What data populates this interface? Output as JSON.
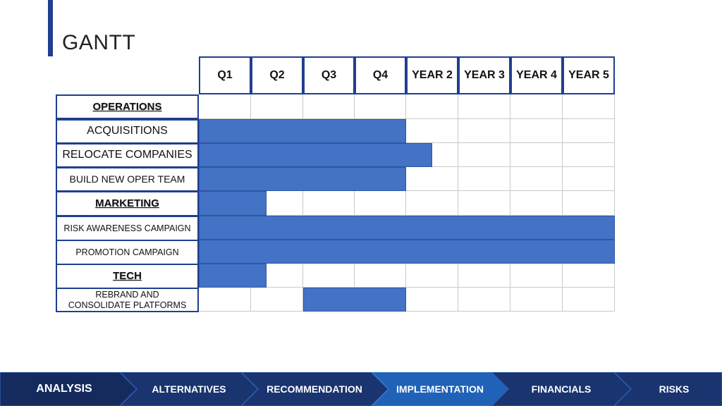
{
  "title": "GANTT",
  "columns": [
    "Q1",
    "Q2",
    "Q3",
    "Q4",
    "YEAR 2",
    "YEAR 3",
    "YEAR 4",
    "YEAR 5"
  ],
  "rows": [
    {
      "label": "OPERATIONS",
      "type": "section",
      "start": 0,
      "end": 0
    },
    {
      "label": "ACQUISITIONS",
      "type": "task",
      "start": 0,
      "end": 4
    },
    {
      "label": "RELOCATE COMPANIES",
      "type": "task",
      "start": 0,
      "end": 4.5
    },
    {
      "label": "BUILD NEW OPER TEAM",
      "type": "task",
      "start": 0,
      "end": 4
    },
    {
      "label": "MARKETING",
      "type": "section",
      "start": 0,
      "end": 1.3
    },
    {
      "label": "RISK AWARENESS CAMPAIGN",
      "type": "task",
      "start": 0,
      "end": 8
    },
    {
      "label": "PROMOTION CAMPAIGN",
      "type": "task",
      "start": 0,
      "end": 8
    },
    {
      "label": "TECH",
      "type": "section",
      "start": 0,
      "end": 1.3
    },
    {
      "label": "REBRAND AND CONSOLIDATE PLATFORMS",
      "type": "task",
      "start": 2,
      "end": 4
    }
  ],
  "nav": {
    "items": [
      "ANALYSIS",
      "ALTERNATIVES",
      "RECOMMENDATION",
      "IMPLEMENTATION",
      "FINANCIALS",
      "RISKS"
    ],
    "active": "IMPLEMENTATION"
  },
  "colors": {
    "accent": "#1f3f8f",
    "bar": "#4472c4",
    "nav_bg": "#1a3470",
    "nav_active": "#1f62b8",
    "nav_first": "#152b5e"
  }
}
